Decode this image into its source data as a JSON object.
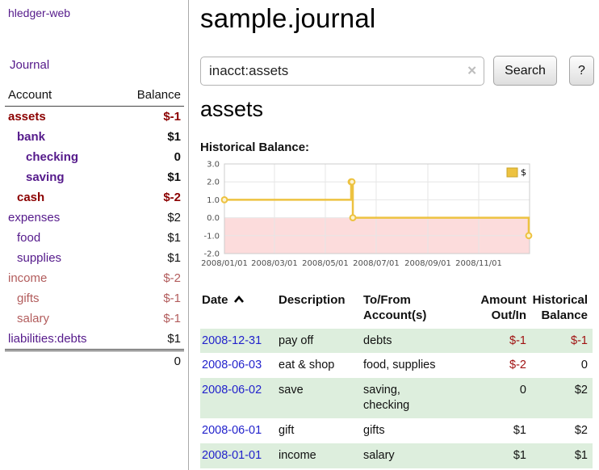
{
  "app": {
    "title": "hledger-web"
  },
  "colors": {
    "link_purple": "#551a8b",
    "date_blue": "#2222cc",
    "negative_dark_red": "#8b0000",
    "negative_light_red": "#b25c5c",
    "row_shade_green": "#ddeedd",
    "chart_line_gold": "#edc240",
    "negative_region_pink": "#fcdcdc"
  },
  "sidebar": {
    "journal_link": "Journal",
    "accounts": {
      "header_account": "Account",
      "header_balance": "Balance",
      "rows": [
        {
          "name": "assets",
          "balance": "$-1",
          "depth": 1,
          "bold": true,
          "negative": true
        },
        {
          "name": "bank",
          "balance": "$1",
          "depth": 2,
          "bold": true,
          "negative": false
        },
        {
          "name": "checking",
          "balance": "0",
          "depth": 3,
          "bold": true,
          "negative": false
        },
        {
          "name": "saving",
          "balance": "$1",
          "depth": 3,
          "bold": true,
          "negative": false
        },
        {
          "name": "cash",
          "balance": "$-2",
          "depth": 2,
          "bold": true,
          "negative": true
        },
        {
          "name": "expenses",
          "balance": "$2",
          "depth": 1,
          "bold": false,
          "negative": false
        },
        {
          "name": "food",
          "balance": "$1",
          "depth": 2,
          "bold": false,
          "negative": false
        },
        {
          "name": "supplies",
          "balance": "$1",
          "depth": 2,
          "bold": false,
          "negative": false
        },
        {
          "name": "income",
          "balance": "$-2",
          "depth": 1,
          "bold": false,
          "negative": true
        },
        {
          "name": "gifts",
          "balance": "$-1",
          "depth": 2,
          "bold": false,
          "negative": true
        },
        {
          "name": "salary",
          "balance": "$-1",
          "depth": 2,
          "bold": false,
          "negative": true
        },
        {
          "name": "liabilities:debts",
          "balance": "$1",
          "depth": 1,
          "bold": false,
          "negative": false
        }
      ],
      "total": "0"
    }
  },
  "main": {
    "title": "sample.journal",
    "search": {
      "value": "inacct:assets",
      "clear_glyph": "✕",
      "button_label": "Search",
      "help_label": "?"
    },
    "account_heading": "assets",
    "chart_title": "Historical Balance:",
    "register": {
      "headers": {
        "date": "Date",
        "description": "Description",
        "account_line1": "To/From",
        "account_line2": "Account(s)",
        "amount_line1": "Amount",
        "amount_line2": "Out/In",
        "balance_line1": "Historical",
        "balance_line2": "Balance"
      },
      "rows": [
        {
          "date": "2008-12-31",
          "description": "pay off",
          "accounts": [
            "debts"
          ],
          "amount": "$-1",
          "amount_negative": true,
          "balance": "$-1",
          "balance_negative": true,
          "shaded": true
        },
        {
          "date": "2008-06-03",
          "description": "eat & shop",
          "accounts": [
            "food, supplies"
          ],
          "amount": "$-2",
          "amount_negative": true,
          "balance": "0",
          "balance_negative": false,
          "shaded": false
        },
        {
          "date": "2008-06-02",
          "description": "save",
          "accounts": [
            "saving,",
            "checking"
          ],
          "amount": "0",
          "amount_negative": false,
          "balance": "$2",
          "balance_negative": false,
          "shaded": true
        },
        {
          "date": "2008-06-01",
          "description": "gift",
          "accounts": [
            "gifts"
          ],
          "amount": "$1",
          "amount_negative": false,
          "balance": "$2",
          "balance_negative": false,
          "shaded": false
        },
        {
          "date": "2008-01-01",
          "description": "income",
          "accounts": [
            "salary"
          ],
          "amount": "$1",
          "amount_negative": false,
          "balance": "$1",
          "balance_negative": false,
          "shaded": true
        }
      ]
    }
  },
  "chart_data": {
    "type": "line",
    "title": "Historical Balance",
    "step": true,
    "legend": [
      {
        "label": "$",
        "color": "#edc240"
      }
    ],
    "legend_position": "top-right",
    "grid": true,
    "ylim": [
      -2.0,
      3.0
    ],
    "y_ticks": [
      3.0,
      2.0,
      1.0,
      0.0,
      -1.0,
      -2.0
    ],
    "x_ticks": [
      "2008/01/01",
      "2008/03/01",
      "2008/05/01",
      "2008/07/01",
      "2008/09/01",
      "2008/11/01"
    ],
    "x_range": [
      "2008-01-01",
      "2009-01-01"
    ],
    "series": [
      {
        "name": "$",
        "points": [
          {
            "x": "2008-01-01",
            "y": 1
          },
          {
            "x": "2008-06-01",
            "y": 2
          },
          {
            "x": "2008-06-02",
            "y": 2
          },
          {
            "x": "2008-06-03",
            "y": 0
          },
          {
            "x": "2008-12-31",
            "y": -1
          }
        ]
      }
    ],
    "negative_region": {
      "from": 0,
      "to": -2,
      "color": "#fcdcdc"
    },
    "colors": {
      "line": "#edc240",
      "grid": "#e6e6e6",
      "border": "#cccccc"
    }
  }
}
